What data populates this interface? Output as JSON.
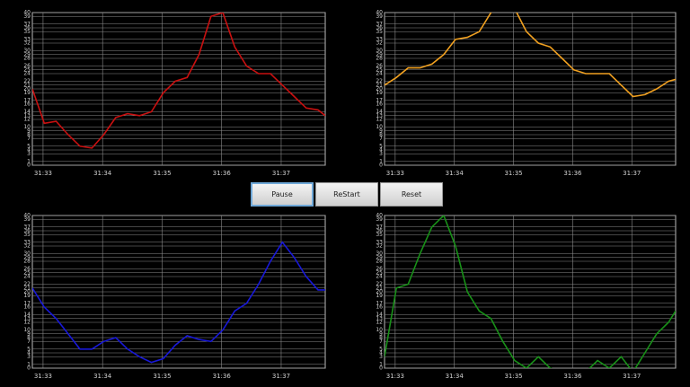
{
  "chart_data": [
    {
      "type": "line",
      "color": "#c81010",
      "x": [
        32.82,
        33.02,
        33.22,
        33.42,
        33.62,
        33.82,
        34.02,
        34.22,
        34.42,
        34.62,
        34.82,
        35.02,
        35.22,
        35.42,
        35.62,
        35.82,
        36.02,
        36.22,
        36.42,
        36.62,
        36.82,
        37.02,
        37.22,
        37.42,
        37.62,
        37.74
      ],
      "values": [
        20,
        11,
        11.5,
        8,
        5,
        4.5,
        8,
        12.5,
        13.5,
        13,
        14,
        19,
        22,
        23,
        29,
        39,
        40,
        31,
        26,
        24,
        24,
        21,
        18,
        15,
        14.5,
        13
      ],
      "xlim": [
        32.82,
        37.74
      ],
      "xticks": [
        {
          "value": 33,
          "label": "31:33"
        },
        {
          "value": 34,
          "label": "31:34"
        },
        {
          "value": 35,
          "label": "31:35"
        },
        {
          "value": 36,
          "label": "31:36"
        },
        {
          "value": 37,
          "label": "31:37"
        }
      ],
      "ylim": [
        0,
        40
      ],
      "yticks": [
        0,
        1,
        3,
        4,
        5,
        7,
        8,
        9,
        10,
        12,
        13,
        14,
        16,
        17,
        19,
        20,
        21,
        22,
        24,
        25,
        26,
        28,
        29,
        30,
        32,
        33,
        35,
        36,
        37,
        39,
        40
      ],
      "grid": true
    },
    {
      "type": "line",
      "color": "#f0a020",
      "x": [
        32.82,
        33.02,
        33.22,
        33.42,
        33.62,
        33.82,
        34.02,
        34.22,
        34.42,
        34.62,
        34.82,
        35.02,
        35.22,
        35.42,
        35.62,
        35.82,
        36.02,
        36.22,
        36.42,
        36.62,
        36.82,
        37.02,
        37.22,
        37.42,
        37.62,
        37.74
      ],
      "values": [
        21,
        23,
        25.5,
        25.5,
        26.5,
        29,
        33,
        33.5,
        35,
        40,
        42,
        41,
        35,
        32,
        31,
        28,
        25,
        24,
        24,
        24,
        21,
        18,
        18.5,
        20,
        22,
        22.5
      ],
      "xlim": [
        32.82,
        37.74
      ],
      "xticks": [
        {
          "value": 33,
          "label": "31:33"
        },
        {
          "value": 34,
          "label": "31:34"
        },
        {
          "value": 35,
          "label": "31:35"
        },
        {
          "value": 36,
          "label": "31:36"
        },
        {
          "value": 37,
          "label": "31:37"
        }
      ],
      "ylim": [
        0,
        40
      ],
      "yticks": [
        0,
        1,
        3,
        4,
        5,
        7,
        8,
        9,
        10,
        12,
        13,
        14,
        16,
        17,
        19,
        20,
        21,
        22,
        24,
        25,
        26,
        28,
        29,
        30,
        32,
        33,
        35,
        36,
        37,
        39,
        40
      ],
      "grid": true
    },
    {
      "type": "line",
      "color": "#1818d8",
      "x": [
        32.82,
        33.02,
        33.22,
        33.42,
        33.62,
        33.82,
        34.02,
        34.22,
        34.42,
        34.62,
        34.82,
        35.02,
        35.22,
        35.42,
        35.62,
        35.82,
        36.02,
        36.22,
        36.42,
        36.62,
        36.82,
        37.02,
        37.22,
        37.42,
        37.62,
        37.74
      ],
      "values": [
        21,
        16,
        13,
        9,
        5,
        5,
        7,
        8,
        5,
        3,
        1.5,
        2.5,
        6,
        8.5,
        7.5,
        7,
        10,
        15,
        17,
        22,
        28,
        33,
        29,
        24,
        20.5,
        20.5
      ],
      "xlim": [
        32.82,
        37.74
      ],
      "xticks": [
        {
          "value": 33,
          "label": "31:33"
        },
        {
          "value": 34,
          "label": "31:34"
        },
        {
          "value": 35,
          "label": "31:35"
        },
        {
          "value": 36,
          "label": "31:36"
        },
        {
          "value": 37,
          "label": "31:37"
        }
      ],
      "ylim": [
        0,
        40
      ],
      "yticks": [
        0,
        1,
        3,
        4,
        5,
        7,
        8,
        9,
        10,
        12,
        13,
        14,
        16,
        17,
        19,
        20,
        21,
        22,
        24,
        25,
        26,
        28,
        29,
        30,
        32,
        33,
        35,
        36,
        37,
        39,
        40
      ],
      "grid": true
    },
    {
      "type": "line",
      "color": "#189018",
      "x": [
        32.82,
        33.02,
        33.22,
        33.42,
        33.62,
        33.82,
        34.02,
        34.22,
        34.42,
        34.62,
        34.82,
        35.02,
        35.22,
        35.42,
        35.62,
        35.82,
        36.02,
        36.22,
        36.42,
        36.62,
        36.82,
        37.02,
        37.22,
        37.42,
        37.62,
        37.74
      ],
      "values": [
        3,
        21,
        22,
        30,
        37,
        40,
        32,
        20,
        15,
        13,
        7,
        2,
        0,
        3,
        0,
        -1,
        -1,
        -1,
        2,
        0,
        3,
        -1,
        4,
        9,
        12,
        15
      ],
      "xlim": [
        32.82,
        37.74
      ],
      "xticks": [
        {
          "value": 33,
          "label": "31:33"
        },
        {
          "value": 34,
          "label": "31:34"
        },
        {
          "value": 35,
          "label": "31:35"
        },
        {
          "value": 36,
          "label": "31:36"
        },
        {
          "value": 37,
          "label": "31:37"
        }
      ],
      "ylim": [
        0,
        40
      ],
      "yticks": [
        0,
        1,
        3,
        4,
        5,
        7,
        8,
        9,
        10,
        12,
        13,
        14,
        16,
        17,
        19,
        20,
        21,
        22,
        24,
        25,
        26,
        28,
        29,
        30,
        32,
        33,
        35,
        36,
        37,
        39,
        40
      ],
      "grid": true
    }
  ],
  "buttons": [
    "Pause",
    "ReStart",
    "Reset"
  ]
}
